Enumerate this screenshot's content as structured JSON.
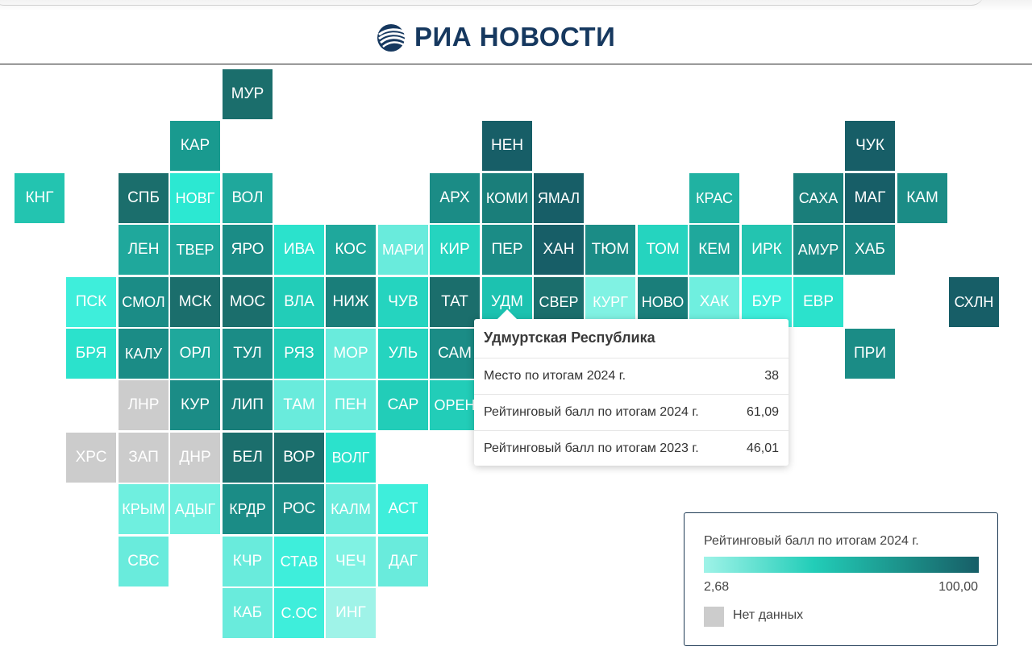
{
  "header": {
    "logo_text": "РИА НОВОСТИ"
  },
  "colors": {
    "scale_min": "#9ff3e8",
    "scale_mid": "#22cdb8",
    "scale_max": "#175e67",
    "no_data": "#cccccc",
    "highlight": "#1cc2b0"
  },
  "map": {
    "tiles": [
      {
        "label": "МУР",
        "row": 0,
        "col": 4,
        "color": "#1b6e6c"
      },
      {
        "label": "КАР",
        "row": 1,
        "col": 3,
        "color": "#199a8f"
      },
      {
        "label": "НЕН",
        "row": 1,
        "col": 9,
        "color": "#175e67"
      },
      {
        "label": "ЧУК",
        "row": 1,
        "col": 16,
        "color": "#175e67"
      },
      {
        "label": "КНГ",
        "row": 2,
        "col": 0,
        "color": "#23c4b0"
      },
      {
        "label": "СПБ",
        "row": 2,
        "col": 2,
        "color": "#1b6e6c"
      },
      {
        "label": "НОВГ",
        "row": 2,
        "col": 3,
        "color": "#2ce8d2"
      },
      {
        "label": "ВОЛ",
        "row": 2,
        "col": 4,
        "color": "#1fa89c"
      },
      {
        "label": "АРХ",
        "row": 2,
        "col": 8,
        "color": "#1b8c86"
      },
      {
        "label": "КОМИ",
        "row": 2,
        "col": 9,
        "color": "#1a7e7a"
      },
      {
        "label": "ЯМАЛ",
        "row": 2,
        "col": 10,
        "color": "#175e67"
      },
      {
        "label": "КРАС",
        "row": 2,
        "col": 13,
        "color": "#20b2a2"
      },
      {
        "label": "САХА",
        "row": 2,
        "col": 15,
        "color": "#1a7e7a"
      },
      {
        "label": "МАГ",
        "row": 2,
        "col": 16,
        "color": "#175e67"
      },
      {
        "label": "КАМ",
        "row": 2,
        "col": 17,
        "color": "#1b8c86"
      },
      {
        "label": "ЛЕН",
        "row": 3,
        "col": 2,
        "color": "#1fa89c"
      },
      {
        "label": "ТВЕР",
        "row": 3,
        "col": 3,
        "color": "#1fa89c"
      },
      {
        "label": "ЯРО",
        "row": 3,
        "col": 4,
        "color": "#1b8c86"
      },
      {
        "label": "ИВА",
        "row": 3,
        "col": 5,
        "color": "#2be2cc"
      },
      {
        "label": "КОС",
        "row": 3,
        "col": 6,
        "color": "#1fa89c"
      },
      {
        "label": "МАРИ",
        "row": 3,
        "col": 7,
        "color": "#69ebdc"
      },
      {
        "label": "КИР",
        "row": 3,
        "col": 8,
        "color": "#25d4bf"
      },
      {
        "label": "ПЕР",
        "row": 3,
        "col": 9,
        "color": "#1b8c86"
      },
      {
        "label": "ХАН",
        "row": 3,
        "col": 10,
        "color": "#175e67"
      },
      {
        "label": "ТЮМ",
        "row": 3,
        "col": 11,
        "color": "#1b8c86"
      },
      {
        "label": "ТОМ",
        "row": 3,
        "col": 12,
        "color": "#25d4bf"
      },
      {
        "label": "КЕМ",
        "row": 3,
        "col": 13,
        "color": "#1fa89c"
      },
      {
        "label": "ИРК",
        "row": 3,
        "col": 14,
        "color": "#23c4b0"
      },
      {
        "label": "АМУР",
        "row": 3,
        "col": 15,
        "color": "#1b8c86"
      },
      {
        "label": "ХАБ",
        "row": 3,
        "col": 16,
        "color": "#1b8c86"
      },
      {
        "label": "ПСК",
        "row": 4,
        "col": 1,
        "color": "#3eeedb"
      },
      {
        "label": "СМОЛ",
        "row": 4,
        "col": 2,
        "color": "#1b8c86"
      },
      {
        "label": "МСК",
        "row": 4,
        "col": 3,
        "color": "#1b6e6c"
      },
      {
        "label": "МОС",
        "row": 4,
        "col": 4,
        "color": "#1b6e6c"
      },
      {
        "label": "ВЛА",
        "row": 4,
        "col": 5,
        "color": "#22cdb8"
      },
      {
        "label": "НИЖ",
        "row": 4,
        "col": 6,
        "color": "#1a7e7a"
      },
      {
        "label": "ЧУВ",
        "row": 4,
        "col": 7,
        "color": "#25d4bf"
      },
      {
        "label": "ТАТ",
        "row": 4,
        "col": 8,
        "color": "#1b6e6c"
      },
      {
        "label": "УДМ",
        "row": 4,
        "col": 9,
        "color": "#1cc2b0"
      },
      {
        "label": "СВЕР",
        "row": 4,
        "col": 10,
        "color": "#1b6e6c"
      },
      {
        "label": "КУРГ",
        "row": 4,
        "col": 11,
        "color": "#80f2e3"
      },
      {
        "label": "НОВО",
        "row": 4,
        "col": 12,
        "color": "#1a7e7a"
      },
      {
        "label": "ХАК",
        "row": 4,
        "col": 13,
        "color": "#6fefdf"
      },
      {
        "label": "БУР",
        "row": 4,
        "col": 14,
        "color": "#3eeedb"
      },
      {
        "label": "ЕВР",
        "row": 4,
        "col": 15,
        "color": "#2be2cc"
      },
      {
        "label": "СХЛН",
        "row": 4,
        "col": 18,
        "color": "#175e67"
      },
      {
        "label": "БРЯ",
        "row": 5,
        "col": 1,
        "color": "#2be2cc"
      },
      {
        "label": "КАЛУ",
        "row": 5,
        "col": 2,
        "color": "#1b8c86"
      },
      {
        "label": "ОРЛ",
        "row": 5,
        "col": 3,
        "color": "#1fa89c"
      },
      {
        "label": "ТУЛ",
        "row": 5,
        "col": 4,
        "color": "#1b8c86"
      },
      {
        "label": "РЯЗ",
        "row": 5,
        "col": 5,
        "color": "#22cdb8"
      },
      {
        "label": "МОР",
        "row": 5,
        "col": 6,
        "color": "#69ebdc"
      },
      {
        "label": "УЛЬ",
        "row": 5,
        "col": 7,
        "color": "#25d4bf"
      },
      {
        "label": "САМ",
        "row": 5,
        "col": 8,
        "color": "#1b8c86"
      },
      {
        "label": "ПРИ",
        "row": 5,
        "col": 16,
        "color": "#1b8c86"
      },
      {
        "label": "ЛНР",
        "row": 6,
        "col": 2,
        "color": "#cccccc"
      },
      {
        "label": "КУР",
        "row": 6,
        "col": 3,
        "color": "#1b8c86"
      },
      {
        "label": "ЛИП",
        "row": 6,
        "col": 4,
        "color": "#1a7e7a"
      },
      {
        "label": "ТАМ",
        "row": 6,
        "col": 5,
        "color": "#69ebdc"
      },
      {
        "label": "ПЕН",
        "row": 6,
        "col": 6,
        "color": "#69ebdc"
      },
      {
        "label": "САР",
        "row": 6,
        "col": 7,
        "color": "#22cdb8"
      },
      {
        "label": "ОРЕН",
        "row": 6,
        "col": 8,
        "color": "#22cdb8"
      },
      {
        "label": "ХРС",
        "row": 7,
        "col": 1,
        "color": "#cccccc"
      },
      {
        "label": "ЗАП",
        "row": 7,
        "col": 2,
        "color": "#cccccc"
      },
      {
        "label": "ДНР",
        "row": 7,
        "col": 3,
        "color": "#cccccc"
      },
      {
        "label": "БЕЛ",
        "row": 7,
        "col": 4,
        "color": "#1b6e6c"
      },
      {
        "label": "ВОР",
        "row": 7,
        "col": 5,
        "color": "#1b6e6c"
      },
      {
        "label": "ВОЛГ",
        "row": 7,
        "col": 6,
        "color": "#2be2cc"
      },
      {
        "label": "КРЫМ",
        "row": 8,
        "col": 2,
        "color": "#6fefdf"
      },
      {
        "label": "АДЫГ",
        "row": 8,
        "col": 3,
        "color": "#6fefdf"
      },
      {
        "label": "КРДР",
        "row": 8,
        "col": 4,
        "color": "#1b8c86"
      },
      {
        "label": "РОС",
        "row": 8,
        "col": 5,
        "color": "#1b8c86"
      },
      {
        "label": "КАЛМ",
        "row": 8,
        "col": 6,
        "color": "#69ebdc"
      },
      {
        "label": "АСТ",
        "row": 8,
        "col": 7,
        "color": "#3eeedb"
      },
      {
        "label": "СВС",
        "row": 9,
        "col": 2,
        "color": "#69ebdc"
      },
      {
        "label": "КЧР",
        "row": 9,
        "col": 4,
        "color": "#69ebdc"
      },
      {
        "label": "СТАВ",
        "row": 9,
        "col": 5,
        "color": "#3eeedb"
      },
      {
        "label": "ЧЕЧ",
        "row": 9,
        "col": 6,
        "color": "#80f2e3"
      },
      {
        "label": "ДАГ",
        "row": 9,
        "col": 7,
        "color": "#69ebdc"
      },
      {
        "label": "КАБ",
        "row": 10,
        "col": 4,
        "color": "#69ebdc"
      },
      {
        "label": "С.ОС",
        "row": 10,
        "col": 5,
        "color": "#3eeedb"
      },
      {
        "label": "ИНГ",
        "row": 10,
        "col": 6,
        "color": "#9ff3e8"
      }
    ]
  },
  "tooltip": {
    "title": "Удмуртская Республика",
    "rows": [
      {
        "label": "Место по итогам 2024 г.",
        "value": "38"
      },
      {
        "label": "Рейтинговый балл по итогам 2024 г.",
        "value": "61,09"
      },
      {
        "label": "Рейтинговый балл по итогам 2023 г.",
        "value": "46,01"
      }
    ]
  },
  "legend": {
    "title": "Рейтинговый балл по итогам 2024 г.",
    "min_label": "2,68",
    "max_label": "100,00",
    "no_data_label": "Нет данных"
  }
}
